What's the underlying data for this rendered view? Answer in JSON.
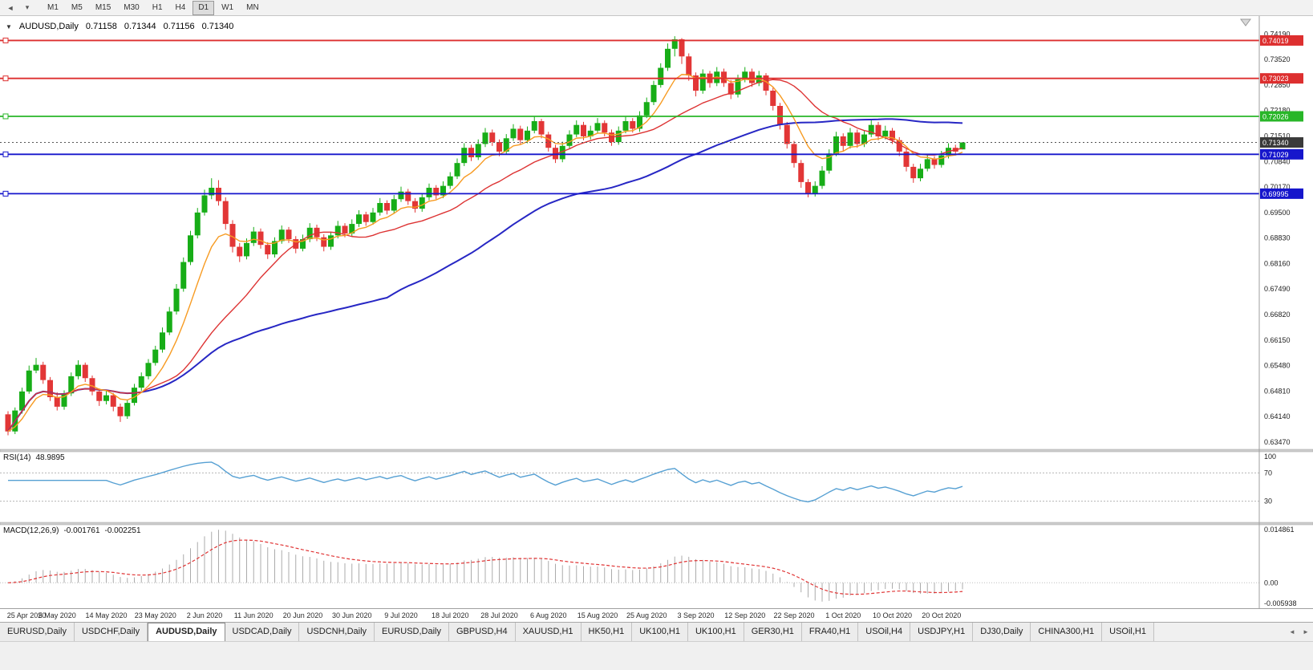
{
  "toolbar": {
    "timeframes": [
      "M1",
      "M5",
      "M15",
      "M30",
      "H1",
      "H4",
      "D1",
      "W1",
      "MN"
    ],
    "active_timeframe": "D1"
  },
  "icons": {
    "toolbar_left_1": "◄",
    "toolbar_left_2": "▾",
    "title_caret": "▼",
    "tab_scroll_left": "◄",
    "tab_scroll_right": "►"
  },
  "title": {
    "symbol_label": "AUDUSD,Daily",
    "open": "0.71158",
    "high": "0.71344",
    "low": "0.71156",
    "close": "0.71340"
  },
  "price_axis": {
    "labels": [
      "0.74190",
      "0.73520",
      "0.72850",
      "0.72180",
      "0.71510",
      "0.70840",
      "0.70170",
      "0.69500",
      "0.68830",
      "0.68160",
      "0.67490",
      "0.66820",
      "0.66150",
      "0.65480",
      "0.64810",
      "0.64140",
      "0.63470"
    ]
  },
  "date_axis": [
    "25 Apr 2020",
    "5 May 2020",
    "14 May 2020",
    "23 May 2020",
    "2 Jun 2020",
    "11 Jun 2020",
    "20 Jun 2020",
    "30 Jun 2020",
    "9 Jul 2020",
    "18 Jul 2020",
    "28 Jul 2020",
    "6 Aug 2020",
    "15 Aug 2020",
    "25 Aug 2020",
    "3 Sep 2020",
    "12 Sep 2020",
    "22 Sep 2020",
    "1 Oct 2020",
    "10 Oct 2020",
    "20 Oct 2020"
  ],
  "hlines": [
    {
      "value": 0.74019,
      "label": "0.74019",
      "color": "#dd2f2f"
    },
    {
      "value": 0.73023,
      "label": "0.73023",
      "color": "#dd2f2f"
    },
    {
      "value": 0.72026,
      "label": "0.72026",
      "color": "#28b628"
    },
    {
      "value": 0.71029,
      "label": "0.71029",
      "color": "#1616cc"
    },
    {
      "value": 0.69995,
      "label": "0.69995",
      "color": "#1616cc"
    }
  ],
  "current_price": {
    "value": 0.7134,
    "label": "0.71340",
    "color": "#3a3a3a"
  },
  "rsi": {
    "name": "RSI(14)",
    "value": "48.9895",
    "color": "#56a0d3",
    "levels": [
      {
        "label": "100",
        "value": 100,
        "dashed": false
      },
      {
        "label": "70",
        "value": 70,
        "dashed": true
      },
      {
        "label": "30",
        "value": 30,
        "dashed": true
      }
    ]
  },
  "macd": {
    "name": "MACD(12,26,9)",
    "value_macd": "-0.001761",
    "value_signal": "-0.002251",
    "axis_top_label": "0.014861",
    "axis_zero_label": "0.00",
    "axis_bottom_label": "-0.005938",
    "hist_color": "#ababab",
    "signal_color": "#e03434"
  },
  "tabs": {
    "active_index": 2,
    "items": [
      "EURUSD,Daily",
      "USDCHF,Daily",
      "AUDUSD,Daily",
      "USDCAD,Daily",
      "USDCNH,Daily",
      "EURUSD,Daily",
      "GBPUSD,H4",
      "XAUUSD,H1",
      "HK50,H1",
      "UK100,H1",
      "UK100,H1",
      "GER30,H1",
      "FRA40,H1",
      "USOil,H4",
      "USDJPY,H1",
      "DJ30,Daily",
      "CHINA300,H1",
      "USOil,H1"
    ]
  },
  "chart_data": {
    "type": "candlestick",
    "symbol": "AUDUSD",
    "timeframe": "Daily",
    "ylim": [
      0.6328,
      0.7466
    ],
    "up_color": "#17ad17",
    "down_color": "#e23636",
    "ma_fast_color": "#f79b22",
    "ma_mid_color": "#dd3333",
    "ma_slow_color": "#2727c4",
    "candles": [
      [
        0.642,
        0.6428,
        0.6365,
        0.6375
      ],
      [
        0.6375,
        0.6438,
        0.6368,
        0.643
      ],
      [
        0.643,
        0.649,
        0.6422,
        0.648
      ],
      [
        0.648,
        0.6548,
        0.6474,
        0.6535
      ],
      [
        0.6535,
        0.6568,
        0.6528,
        0.655
      ],
      [
        0.655,
        0.6558,
        0.65,
        0.651
      ],
      [
        0.651,
        0.6518,
        0.6455,
        0.6465
      ],
      [
        0.6465,
        0.6478,
        0.643,
        0.644
      ],
      [
        0.644,
        0.6483,
        0.6432,
        0.6475
      ],
      [
        0.6475,
        0.653,
        0.6468,
        0.652
      ],
      [
        0.652,
        0.6562,
        0.6512,
        0.655
      ],
      [
        0.655,
        0.6556,
        0.6505,
        0.6515
      ],
      [
        0.6515,
        0.6522,
        0.647,
        0.648
      ],
      [
        0.648,
        0.6488,
        0.6442,
        0.6455
      ],
      [
        0.6455,
        0.6482,
        0.6446,
        0.647
      ],
      [
        0.647,
        0.6476,
        0.6428,
        0.644
      ],
      [
        0.644,
        0.6448,
        0.64,
        0.6415
      ],
      [
        0.6415,
        0.6458,
        0.6408,
        0.645
      ],
      [
        0.645,
        0.65,
        0.6443,
        0.649
      ],
      [
        0.649,
        0.653,
        0.6482,
        0.652
      ],
      [
        0.652,
        0.6565,
        0.6512,
        0.6555
      ],
      [
        0.6555,
        0.66,
        0.6548,
        0.659
      ],
      [
        0.659,
        0.6648,
        0.6582,
        0.6635
      ],
      [
        0.6635,
        0.6702,
        0.6628,
        0.669
      ],
      [
        0.669,
        0.6762,
        0.6682,
        0.675
      ],
      [
        0.675,
        0.6832,
        0.6742,
        0.682
      ],
      [
        0.682,
        0.6902,
        0.6812,
        0.689
      ],
      [
        0.689,
        0.6962,
        0.6882,
        0.695
      ],
      [
        0.695,
        0.701,
        0.6942,
        0.6995
      ],
      [
        0.6995,
        0.704,
        0.6985,
        0.7015
      ],
      [
        0.7015,
        0.7035,
        0.6968,
        0.698
      ],
      [
        0.698,
        0.699,
        0.6905,
        0.692
      ],
      [
        0.692,
        0.693,
        0.6845,
        0.686
      ],
      [
        0.686,
        0.687,
        0.682,
        0.6835
      ],
      [
        0.6835,
        0.6882,
        0.6827,
        0.687
      ],
      [
        0.687,
        0.6912,
        0.6862,
        0.69
      ],
      [
        0.69,
        0.6908,
        0.6855,
        0.6865
      ],
      [
        0.6865,
        0.6872,
        0.6828,
        0.684
      ],
      [
        0.684,
        0.6885,
        0.6832,
        0.6875
      ],
      [
        0.6875,
        0.6916,
        0.6868,
        0.6905
      ],
      [
        0.6905,
        0.6912,
        0.687,
        0.688
      ],
      [
        0.688,
        0.6888,
        0.6843,
        0.6855
      ],
      [
        0.6855,
        0.6892,
        0.6848,
        0.688
      ],
      [
        0.688,
        0.6922,
        0.6872,
        0.691
      ],
      [
        0.691,
        0.6918,
        0.6875,
        0.6885
      ],
      [
        0.6885,
        0.6893,
        0.6848,
        0.686
      ],
      [
        0.686,
        0.69,
        0.6852,
        0.689
      ],
      [
        0.689,
        0.6928,
        0.6882,
        0.6915
      ],
      [
        0.6915,
        0.6922,
        0.6885,
        0.6895
      ],
      [
        0.6895,
        0.6932,
        0.6888,
        0.692
      ],
      [
        0.692,
        0.6956,
        0.6912,
        0.6945
      ],
      [
        0.6945,
        0.6952,
        0.6915,
        0.6925
      ],
      [
        0.6925,
        0.6962,
        0.6918,
        0.695
      ],
      [
        0.695,
        0.6988,
        0.6942,
        0.6975
      ],
      [
        0.6975,
        0.6982,
        0.6945,
        0.6955
      ],
      [
        0.6955,
        0.6996,
        0.6948,
        0.6985
      ],
      [
        0.6985,
        0.7018,
        0.6978,
        0.7005
      ],
      [
        0.7005,
        0.7012,
        0.697,
        0.698
      ],
      [
        0.698,
        0.6988,
        0.695,
        0.696
      ],
      [
        0.696,
        0.7,
        0.6952,
        0.699
      ],
      [
        0.699,
        0.7026,
        0.6982,
        0.7015
      ],
      [
        0.7015,
        0.7022,
        0.6985,
        0.6995
      ],
      [
        0.6995,
        0.7032,
        0.6988,
        0.702
      ],
      [
        0.702,
        0.7056,
        0.7012,
        0.7045
      ],
      [
        0.7045,
        0.7092,
        0.7038,
        0.708
      ],
      [
        0.708,
        0.7132,
        0.7072,
        0.712
      ],
      [
        0.712,
        0.7128,
        0.7085,
        0.7095
      ],
      [
        0.7095,
        0.7142,
        0.7088,
        0.713
      ],
      [
        0.713,
        0.7172,
        0.7122,
        0.716
      ],
      [
        0.716,
        0.7168,
        0.7125,
        0.7135
      ],
      [
        0.7135,
        0.7142,
        0.7098,
        0.711
      ],
      [
        0.711,
        0.7156,
        0.7102,
        0.7145
      ],
      [
        0.7145,
        0.7182,
        0.7138,
        0.717
      ],
      [
        0.717,
        0.7178,
        0.713,
        0.714
      ],
      [
        0.714,
        0.7176,
        0.7132,
        0.7165
      ],
      [
        0.7165,
        0.7202,
        0.7158,
        0.719
      ],
      [
        0.719,
        0.7196,
        0.7145,
        0.7155
      ],
      [
        0.7155,
        0.7162,
        0.711,
        0.712
      ],
      [
        0.712,
        0.7128,
        0.708,
        0.709
      ],
      [
        0.709,
        0.7136,
        0.7082,
        0.7125
      ],
      [
        0.7125,
        0.7166,
        0.7118,
        0.7155
      ],
      [
        0.7155,
        0.7192,
        0.7148,
        0.718
      ],
      [
        0.718,
        0.7188,
        0.714,
        0.715
      ],
      [
        0.715,
        0.7178,
        0.7142,
        0.7165
      ],
      [
        0.7165,
        0.7198,
        0.7158,
        0.7185
      ],
      [
        0.7185,
        0.7192,
        0.715,
        0.716
      ],
      [
        0.716,
        0.7168,
        0.7125,
        0.7135
      ],
      [
        0.7135,
        0.7176,
        0.7128,
        0.7165
      ],
      [
        0.7165,
        0.7202,
        0.7158,
        0.719
      ],
      [
        0.719,
        0.7198,
        0.716,
        0.717
      ],
      [
        0.717,
        0.7216,
        0.7162,
        0.7205
      ],
      [
        0.7205,
        0.7252,
        0.7198,
        0.724
      ],
      [
        0.724,
        0.7296,
        0.7232,
        0.7285
      ],
      [
        0.7285,
        0.7342,
        0.7278,
        0.733
      ],
      [
        0.733,
        0.7394,
        0.7322,
        0.738
      ],
      [
        0.738,
        0.7413,
        0.736,
        0.7405
      ],
      [
        0.7405,
        0.7408,
        0.734,
        0.736
      ],
      [
        0.736,
        0.7368,
        0.7296,
        0.731
      ],
      [
        0.731,
        0.7318,
        0.7255,
        0.727
      ],
      [
        0.727,
        0.7326,
        0.7262,
        0.7315
      ],
      [
        0.7315,
        0.7322,
        0.7278,
        0.729
      ],
      [
        0.729,
        0.7332,
        0.7282,
        0.732
      ],
      [
        0.732,
        0.7328,
        0.728,
        0.729
      ],
      [
        0.729,
        0.7298,
        0.7248,
        0.726
      ],
      [
        0.726,
        0.7312,
        0.7252,
        0.73
      ],
      [
        0.73,
        0.7332,
        0.7292,
        0.732
      ],
      [
        0.732,
        0.7328,
        0.728,
        0.729
      ],
      [
        0.729,
        0.7322,
        0.7282,
        0.731
      ],
      [
        0.731,
        0.7316,
        0.7258,
        0.727
      ],
      [
        0.727,
        0.7278,
        0.7218,
        0.723
      ],
      [
        0.723,
        0.7238,
        0.7168,
        0.718
      ],
      [
        0.718,
        0.7188,
        0.7118,
        0.713
      ],
      [
        0.713,
        0.7138,
        0.7068,
        0.708
      ],
      [
        0.708,
        0.7088,
        0.7015,
        0.703
      ],
      [
        0.703,
        0.7038,
        0.699,
        0.7
      ],
      [
        0.7,
        0.7032,
        0.6992,
        0.702
      ],
      [
        0.702,
        0.7072,
        0.7012,
        0.706
      ],
      [
        0.706,
        0.7116,
        0.7052,
        0.7105
      ],
      [
        0.7105,
        0.7162,
        0.7098,
        0.715
      ],
      [
        0.715,
        0.7158,
        0.7112,
        0.7125
      ],
      [
        0.7125,
        0.7172,
        0.7118,
        0.716
      ],
      [
        0.716,
        0.7168,
        0.712,
        0.713
      ],
      [
        0.713,
        0.7166,
        0.7122,
        0.7155
      ],
      [
        0.7155,
        0.7192,
        0.7148,
        0.718
      ],
      [
        0.718,
        0.7188,
        0.714,
        0.715
      ],
      [
        0.715,
        0.7178,
        0.7142,
        0.7165
      ],
      [
        0.7165,
        0.7172,
        0.713,
        0.714
      ],
      [
        0.714,
        0.7148,
        0.7098,
        0.711
      ],
      [
        0.711,
        0.7118,
        0.7058,
        0.707
      ],
      [
        0.707,
        0.7078,
        0.7028,
        0.704
      ],
      [
        0.704,
        0.7078,
        0.7032,
        0.7065
      ],
      [
        0.7065,
        0.7102,
        0.7058,
        0.709
      ],
      [
        0.709,
        0.7098,
        0.7065,
        0.7075
      ],
      [
        0.7075,
        0.7112,
        0.7068,
        0.71
      ],
      [
        0.71,
        0.7132,
        0.7092,
        0.712
      ],
      [
        0.712,
        0.7128,
        0.71,
        0.711
      ],
      [
        0.71158,
        0.71344,
        0.71156,
        0.7134
      ]
    ]
  }
}
